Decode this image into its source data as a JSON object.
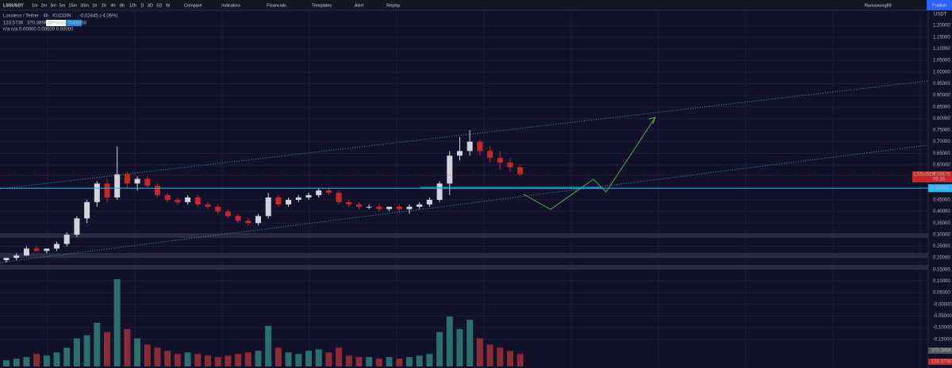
{
  "toolbar": {
    "symbol": "LSSUSDT",
    "intervals": [
      "1m",
      "2m",
      "3m",
      "5m",
      "15m",
      "30m",
      "1h",
      "2h",
      "4h",
      "8h",
      "12h",
      "D",
      "3D",
      "5D",
      "W"
    ],
    "buttons": [
      "Compare",
      "Indicators",
      "Financials",
      "Templates",
      "Alert",
      "Replay"
    ],
    "user": "flaviusxung89",
    "publish": "Publish"
  },
  "legend": {
    "title": "Lossless / Tether · 4h · KUCOIN",
    "change": "-0.02445 (-4.06%)",
    "volume_values": [
      "133.573K",
      "370.389K"
    ],
    "tags": [
      "@FlaviusDaniel88",
      "Twitter"
    ],
    "indicator": "n/a  n/a  0.00000  0.00000  0.00000"
  },
  "chart_data": {
    "type": "candlestick",
    "open": [
      0.19,
      0.2,
      0.21,
      0.24,
      0.23,
      0.24,
      0.26,
      0.3,
      0.37,
      0.44,
      0.52,
      0.46,
      0.56,
      0.52,
      0.54,
      0.51,
      0.47,
      0.45,
      0.44,
      0.46,
      0.43,
      0.42,
      0.4,
      0.38,
      0.36,
      0.35,
      0.38,
      0.46,
      0.43,
      0.45,
      0.46,
      0.47,
      0.49,
      0.48,
      0.44,
      0.43,
      0.42,
      0.42,
      0.41,
      0.42,
      0.41,
      0.42,
      0.43,
      0.45,
      0.52,
      0.64,
      0.66,
      0.7,
      0.66,
      0.63,
      0.61,
      0.59
    ],
    "high": [
      0.2,
      0.22,
      0.25,
      0.25,
      0.24,
      0.27,
      0.31,
      0.38,
      0.45,
      0.53,
      0.54,
      0.68,
      0.57,
      0.55,
      0.55,
      0.52,
      0.48,
      0.46,
      0.47,
      0.47,
      0.44,
      0.43,
      0.41,
      0.39,
      0.37,
      0.39,
      0.48,
      0.47,
      0.46,
      0.47,
      0.48,
      0.5,
      0.5,
      0.49,
      0.45,
      0.44,
      0.43,
      0.43,
      0.42,
      0.43,
      0.43,
      0.44,
      0.46,
      0.53,
      0.66,
      0.72,
      0.75,
      0.71,
      0.68,
      0.66,
      0.63,
      0.6
    ],
    "low": [
      0.18,
      0.19,
      0.21,
      0.23,
      0.22,
      0.23,
      0.25,
      0.29,
      0.35,
      0.42,
      0.44,
      0.45,
      0.5,
      0.49,
      0.5,
      0.46,
      0.44,
      0.43,
      0.43,
      0.42,
      0.41,
      0.39,
      0.37,
      0.35,
      0.34,
      0.34,
      0.37,
      0.42,
      0.42,
      0.44,
      0.45,
      0.46,
      0.47,
      0.43,
      0.42,
      0.41,
      0.41,
      0.4,
      0.4,
      0.4,
      0.39,
      0.41,
      0.42,
      0.44,
      0.47,
      0.62,
      0.64,
      0.64,
      0.61,
      0.58,
      0.57,
      0.55
    ],
    "close": [
      0.2,
      0.21,
      0.24,
      0.23,
      0.24,
      0.26,
      0.3,
      0.37,
      0.44,
      0.52,
      0.46,
      0.56,
      0.52,
      0.54,
      0.51,
      0.47,
      0.45,
      0.44,
      0.46,
      0.43,
      0.42,
      0.4,
      0.38,
      0.36,
      0.35,
      0.38,
      0.46,
      0.43,
      0.45,
      0.46,
      0.47,
      0.49,
      0.48,
      0.44,
      0.43,
      0.42,
      0.42,
      0.41,
      0.42,
      0.41,
      0.42,
      0.43,
      0.45,
      0.52,
      0.64,
      0.66,
      0.7,
      0.66,
      0.63,
      0.61,
      0.59,
      0.56
    ],
    "volume": [
      20,
      25,
      30,
      40,
      35,
      45,
      60,
      90,
      100,
      140,
      110,
      280,
      120,
      90,
      70,
      60,
      50,
      40,
      45,
      40,
      35,
      30,
      35,
      40,
      45,
      50,
      130,
      60,
      45,
      40,
      50,
      55,
      45,
      60,
      35,
      30,
      30,
      25,
      30,
      25,
      30,
      35,
      40,
      110,
      160,
      120,
      150,
      90,
      70,
      60,
      50,
      40
    ],
    "ylim": [
      -0.267,
      1.262
    ],
    "yticks": [
      {
        "value": 1.2,
        "label": "1.20000"
      },
      {
        "value": 1.15,
        "label": "1.15000"
      },
      {
        "value": 1.1,
        "label": "1.10000"
      },
      {
        "value": 1.05,
        "label": "1.05000"
      },
      {
        "value": 1.0,
        "label": "1.00000"
      },
      {
        "value": 0.95,
        "label": "0.95000"
      },
      {
        "value": 0.9,
        "label": "0.90000"
      },
      {
        "value": 0.85,
        "label": "0.85000"
      },
      {
        "value": 0.8,
        "label": "0.80000"
      },
      {
        "value": 0.75,
        "label": "0.75000"
      },
      {
        "value": 0.7,
        "label": "0.70000"
      },
      {
        "value": 0.65,
        "label": "0.65000"
      },
      {
        "value": 0.6,
        "label": "0.60000"
      },
      {
        "value": 0.45,
        "label": "0.45000"
      },
      {
        "value": 0.4,
        "label": "0.40000"
      },
      {
        "value": 0.35,
        "label": "0.35000"
      },
      {
        "value": 0.3,
        "label": "0.30000"
      },
      {
        "value": 0.25,
        "label": "0.25000"
      },
      {
        "value": 0.2,
        "label": "0.20000"
      },
      {
        "value": 0.15,
        "label": "0.15000"
      },
      {
        "value": 0.1,
        "label": "0.10000"
      },
      {
        "value": 0.05,
        "label": "0.05000"
      },
      {
        "value": 0,
        "label": "-0.00000"
      },
      {
        "value": -0.05,
        "label": "-0.05000"
      },
      {
        "value": -0.1,
        "label": "-0.10000"
      },
      {
        "value": -0.15,
        "label": "-0.15000"
      }
    ],
    "axis_unit": "USDT",
    "last_price": {
      "symbol": "LSSUSDT",
      "value": 0.55575,
      "countdown": "09:38"
    },
    "hline": {
      "value": 0.5,
      "label": "0.50000"
    },
    "up_color": "#d1d4dc",
    "down_color": "#c62828",
    "volume_up_color": "#2b6f6f",
    "volume_down_color": "#8a2b36",
    "grid": true
  }
}
